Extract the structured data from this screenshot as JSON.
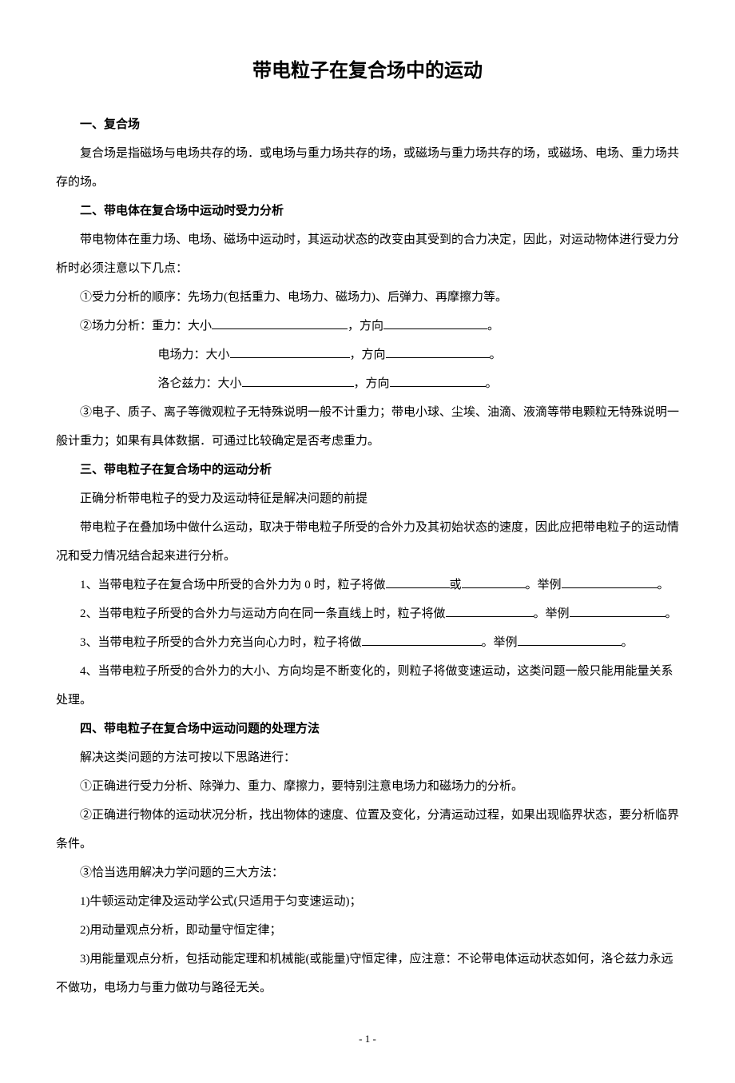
{
  "title": "带电粒子在复合场中的运动",
  "s1": {
    "heading": "一、复合场",
    "p1": "复合场是指磁场与电场共存的场．或电场与重力场共存的场，或磁场与重力场共存的场，或磁场、电场、重力场共存的场。"
  },
  "s2": {
    "heading": "二、带电体在复合场中运动时受力分析",
    "p1": "带电物体在重力场、电场、磁场中运动时，其运动状态的改变由其受到的合力决定，因此，对运动物体进行受力分析时必须注意以下几点：",
    "p2": "①受力分析的顺序：先场力(包括重力、电场力、磁场力)、后弹力、再摩擦力等。",
    "p3a": "②场力分析：重力：大小",
    "p3b": "，方向",
    "p3c": "。",
    "p4a": "电场力：大小",
    "p4b": "，方向",
    "p4c": "。",
    "p5a": "洛仑兹力：大小",
    "p5b": "，方向",
    "p5c": "。",
    "p6": "③电子、质子、离子等微观粒子无特殊说明一般不计重力；带电小球、尘埃、油滴、液滴等带电颗粒无特殊说明一般计重力；如果有具体数据．可通过比较确定是否考虑重力。"
  },
  "s3": {
    "heading": "三、带电粒子在复合场中的运动分析",
    "p1": "正确分析带电粒子的受力及运动特征是解决问题的前提",
    "p2": "带电粒子在叠加场中做什么运动，取决于带电粒子所受的合外力及其初始状态的速度，因此应把带电粒子的运动情况和受力情况结合起来进行分析。",
    "p3a": "1、当带电粒子在复合场中所受的合外力为 0 时，粒子将做",
    "p3b": "或",
    "p3c": "。举例",
    "p3d": "。",
    "p4a": "2、当带电粒子所受的合外力与运动方向在同一条直线上时，粒子将做",
    "p4b": "。举例",
    "p4c": "。",
    "p5a": "3、当带电粒子所受的合外力充当向心力时，粒子将做",
    "p5b": "。举例",
    "p5c": "。",
    "p6": "4、当带电粒子所受的合外力的大小、方向均是不断变化的，则粒子将做变速运动，这类问题一般只能用能量关系处理。"
  },
  "s4": {
    "heading": "四、带电粒子在复合场中运动问题的处理方法",
    "p1": "解决这类问题的方法可按以下思路进行：",
    "p2": "①正确进行受力分析、除弹力、重力、摩擦力，要特别注意电场力和磁场力的分析。",
    "p3": "②正确进行物体的运动状况分析，找出物体的速度、位置及变化，分清运动过程，如果出现临界状态，要分析临界条件。",
    "p4": "③恰当选用解决力学问题的三大方法：",
    "p5": "1)牛顿运动定律及运动学公式(只适用于匀变速运动)；",
    "p6": "2)用动量观点分析，即动量守恒定律；",
    "p7": "3)用能量观点分析，包括动能定理和机械能(或能量)守恒定律，应注意：不论带电体运动状态如何，洛仑兹力永远不做功，电场力与重力做功与路径无关。"
  },
  "page": "- 1 -"
}
